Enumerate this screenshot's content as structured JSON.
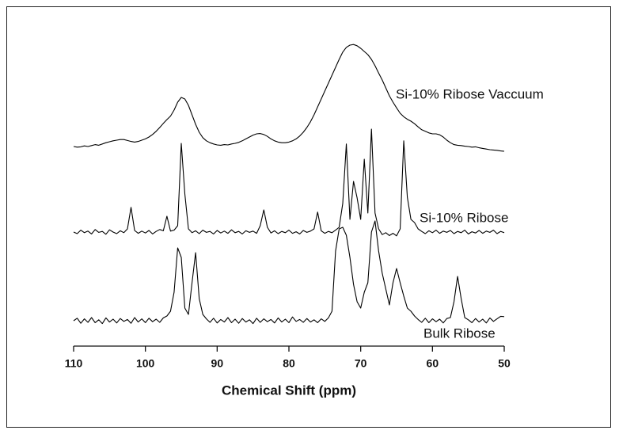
{
  "chart_data": {
    "type": "line",
    "xlabel": "Chemical Shift (ppm)",
    "xlim": [
      110,
      50
    ],
    "xticks": [
      110,
      100,
      90,
      80,
      70,
      60,
      50
    ],
    "ylim": [
      0,
      100
    ],
    "x": [
      110,
      109.5,
      109,
      108.5,
      108,
      107.5,
      107,
      106.5,
      106,
      105.5,
      105,
      104.5,
      104,
      103.5,
      103,
      102.5,
      102,
      101.5,
      101,
      100.5,
      100,
      99.5,
      99,
      98.5,
      98,
      97.5,
      97,
      96.5,
      96,
      95.5,
      95,
      94.5,
      94,
      93.5,
      93,
      92.5,
      92,
      91.5,
      91,
      90.5,
      90,
      89.5,
      89,
      88.5,
      88,
      87.5,
      87,
      86.5,
      86,
      85.5,
      85,
      84.5,
      84,
      83.5,
      83,
      82.5,
      82,
      81.5,
      81,
      80.5,
      80,
      79.5,
      79,
      78.5,
      78,
      77.5,
      77,
      76.5,
      76,
      75.5,
      75,
      74.5,
      74,
      73.5,
      73,
      72.5,
      72,
      71.5,
      71,
      70.5,
      70,
      69.5,
      69,
      68.5,
      68,
      67.5,
      67,
      66.5,
      66,
      65.5,
      65,
      64.5,
      64,
      63.5,
      63,
      62.5,
      62,
      61.5,
      61,
      60.5,
      60,
      59.5,
      59,
      58.5,
      58,
      57.5,
      57,
      56.5,
      56,
      55.5,
      55,
      54.5,
      54,
      53.5,
      53,
      52.5,
      52,
      51.5,
      51,
      50.5,
      50
    ],
    "series": [
      {
        "name": "Si-10% Ribose Vaccuum",
        "color": "#000000",
        "values": [
          63,
          62.8,
          62.9,
          63.2,
          63,
          63.3,
          63.6,
          63.4,
          63.8,
          64.2,
          64.5,
          64.8,
          65,
          65.2,
          65.2,
          64.9,
          64.6,
          64.4,
          64.6,
          65,
          65.4,
          66,
          66.8,
          67.8,
          69,
          70.3,
          71.5,
          72.6,
          74.5,
          77,
          78.5,
          78,
          76,
          73,
          70,
          67.5,
          65.8,
          64.8,
          64.2,
          63.8,
          63.5,
          63.4,
          63.6,
          63.5,
          63.8,
          64,
          64.3,
          64.8,
          65.4,
          66,
          66.6,
          67,
          67.1,
          66.8,
          66.2,
          65.4,
          64.8,
          64.4,
          64.2,
          64.2,
          64.4,
          64.8,
          65.4,
          66.3,
          67.5,
          69,
          70.8,
          73,
          75.5,
          78,
          80.5,
          83,
          85.5,
          88,
          90.5,
          92.8,
          94.3,
          95,
          95.2,
          94.8,
          94,
          93,
          92,
          90.5,
          88.5,
          86.2,
          84,
          81.5,
          79,
          77,
          75.2,
          73.5,
          72.4,
          71.6,
          71,
          70.2,
          69.2,
          68.3,
          67.8,
          67.3,
          67,
          67,
          66.7,
          66,
          65,
          64.2,
          63.6,
          63.4,
          63.3,
          63.1,
          63,
          62.8,
          62.9,
          62.6,
          62.4,
          62.2,
          62,
          61.9,
          61.8,
          61.6,
          61.5
        ]
      },
      {
        "name": "Si-10% Ribose",
        "color": "#000000",
        "values": [
          36,
          35.5,
          36.6,
          35.8,
          36.3,
          35.4,
          36.8,
          35.9,
          36.2,
          35.3,
          36.7,
          36,
          35.5,
          36.4,
          35.8,
          37,
          43.8,
          36.5,
          35.6,
          36.3,
          35.7,
          36.5,
          35.4,
          36.2,
          36.8,
          36.4,
          41,
          36.3,
          36.6,
          38,
          64,
          48,
          37,
          35.8,
          36.4,
          35.5,
          36.6,
          35.9,
          36.2,
          35.4,
          36.5,
          35.7,
          36.3,
          35.6,
          36.7,
          35.8,
          36.2,
          35.4,
          36.4,
          35.9,
          36.3,
          35.6,
          38,
          43,
          37.5,
          35.7,
          36.4,
          35.5,
          36.2,
          35.8,
          36.6,
          35.6,
          36.1,
          35.4,
          36.5,
          35.9,
          36.3,
          37,
          42.3,
          36.4,
          35.6,
          36.2,
          35.8,
          36.6,
          37.5,
          45,
          63.8,
          40,
          52,
          46.8,
          40,
          59,
          42,
          68.5,
          42,
          37,
          35.2,
          35.8,
          34.9,
          35.6,
          34.8,
          37,
          64.8,
          47,
          40,
          39,
          37,
          36.2,
          35.5,
          36.4,
          35.8,
          36.6,
          35.6,
          36.3,
          35.9,
          36.5,
          35.5,
          36.2,
          35.8,
          36.6,
          35.4,
          36.1,
          35.7,
          36.5,
          35.6,
          36.3,
          35.9,
          36.6,
          35.5,
          36.2,
          35.8
        ]
      },
      {
        "name": "Bulk Ribose",
        "color": "#000000",
        "values": [
          8,
          8.8,
          7.2,
          8.6,
          7.5,
          9,
          7.4,
          8.3,
          7.1,
          8.9,
          7.6,
          8.5,
          7.3,
          8.7,
          7.8,
          8.4,
          7.2,
          9,
          7.6,
          8.6,
          7.4,
          8.8,
          7.7,
          8.5,
          7.5,
          8.9,
          9.5,
          11,
          17,
          31,
          28,
          12,
          10,
          20,
          29.5,
          15,
          10,
          8.6,
          7.5,
          8.8,
          7.3,
          8.4,
          7.6,
          9,
          7.4,
          8.5,
          7.2,
          8.7,
          7.6,
          8.3,
          7.1,
          8.8,
          7.5,
          8.6,
          7.7,
          8.4,
          7.3,
          8.9,
          7.6,
          8.5,
          7.4,
          9.2,
          7.8,
          8.4,
          7.5,
          8.7,
          7.6,
          8.3,
          7.4,
          8.6,
          7.8,
          8.9,
          11,
          30,
          37,
          37.5,
          35,
          28,
          19.5,
          14,
          12,
          17,
          20,
          36,
          39.5,
          30,
          23,
          18,
          13,
          20,
          24.5,
          20,
          15.8,
          12,
          11,
          9.5,
          8.4,
          7.5,
          8.8,
          7.4,
          8.6,
          7.7,
          8.5,
          7.3,
          8.7,
          9,
          14,
          22,
          15,
          9,
          8.3,
          7.4,
          8.7,
          7.6,
          8.5,
          7.3,
          8.9,
          7.8,
          8.6,
          9.4,
          9.3
        ]
      }
    ]
  }
}
